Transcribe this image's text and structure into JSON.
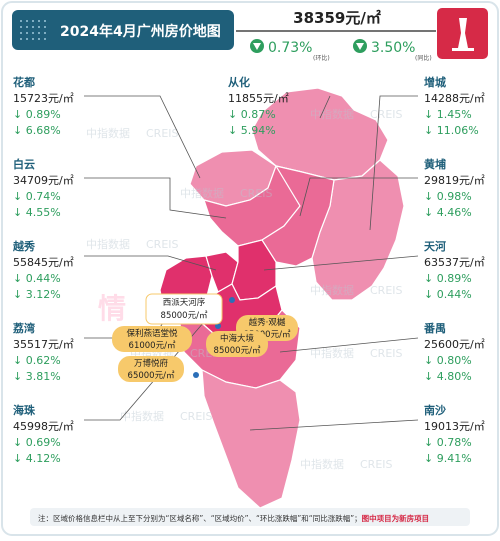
{
  "header": {
    "title": "2024年4月广州房价地图",
    "city_price": "38359元/㎡",
    "mom_value": "0.73%",
    "mom_label": "(环比)",
    "yoy_value": "3.50%",
    "yoy_label": "(同比)"
  },
  "districts": [
    {
      "name": "花都",
      "price": "15723元/㎡",
      "mom": "↓ 0.89%",
      "yoy": "↓ 6.68%"
    },
    {
      "name": "从化",
      "price": "11855元/㎡",
      "mom": "↓ 0.87%",
      "yoy": "↓ 5.94%"
    },
    {
      "name": "增城",
      "price": "14288元/㎡",
      "mom": "↓ 1.45%",
      "yoy": "↓ 11.06%"
    },
    {
      "name": "白云",
      "price": "34709元/㎡",
      "mom": "↓ 0.74%",
      "yoy": "↓ 4.55%"
    },
    {
      "name": "黄埔",
      "price": "29819元/㎡",
      "mom": "↓ 0.98%",
      "yoy": "↓ 4.46%"
    },
    {
      "name": "越秀",
      "price": "55845元/㎡",
      "mom": "↓ 0.44%",
      "yoy": "↓ 3.12%"
    },
    {
      "name": "天河",
      "price": "63537元/㎡",
      "mom": "↓ 0.89%",
      "yoy": "↓ 0.44%"
    },
    {
      "name": "荔湾",
      "price": "35517元/㎡",
      "mom": "↓ 0.62%",
      "yoy": "↓ 3.81%"
    },
    {
      "name": "番禺",
      "price": "25600元/㎡",
      "mom": "↓ 0.80%",
      "yoy": "↓ 4.80%"
    },
    {
      "name": "海珠",
      "price": "45998元/㎡",
      "mom": "↓ 0.69%",
      "yoy": "↓ 4.12%"
    },
    {
      "name": "南沙",
      "price": "19013元/㎡",
      "mom": "↓ 0.78%",
      "yoy": "↓ 9.41%"
    }
  ],
  "projects": [
    {
      "name": "西派天河序",
      "price": "85000元/㎡"
    },
    {
      "name": "保利燕语堂悦",
      "price": "61000元/㎡"
    },
    {
      "name": "越秀·观樾",
      "price": "85000元/㎡"
    },
    {
      "name": "中海大境",
      "price": "85000元/㎡"
    },
    {
      "name": "万博悦府",
      "price": "65000元/㎡"
    }
  ],
  "watermarks": {
    "cn": "中指数据",
    "en": "CREIS",
    "big": "情"
  },
  "footer": {
    "prefix": "注：区域价格信息栏中从上至下分别为“区域名称”、“区域均价”、“环比涨跌幅”和“同比涨跌幅”；",
    "highlight": "图中项目为新房项目"
  },
  "colors": {
    "navy": "#1f5f7a",
    "green": "#2e9e5e",
    "red": "#d62a47",
    "map_light": "#ef8fb0",
    "map_mid": "#ea6a96",
    "map_dark": "#e0306c",
    "project_label": "#f7c96b"
  }
}
